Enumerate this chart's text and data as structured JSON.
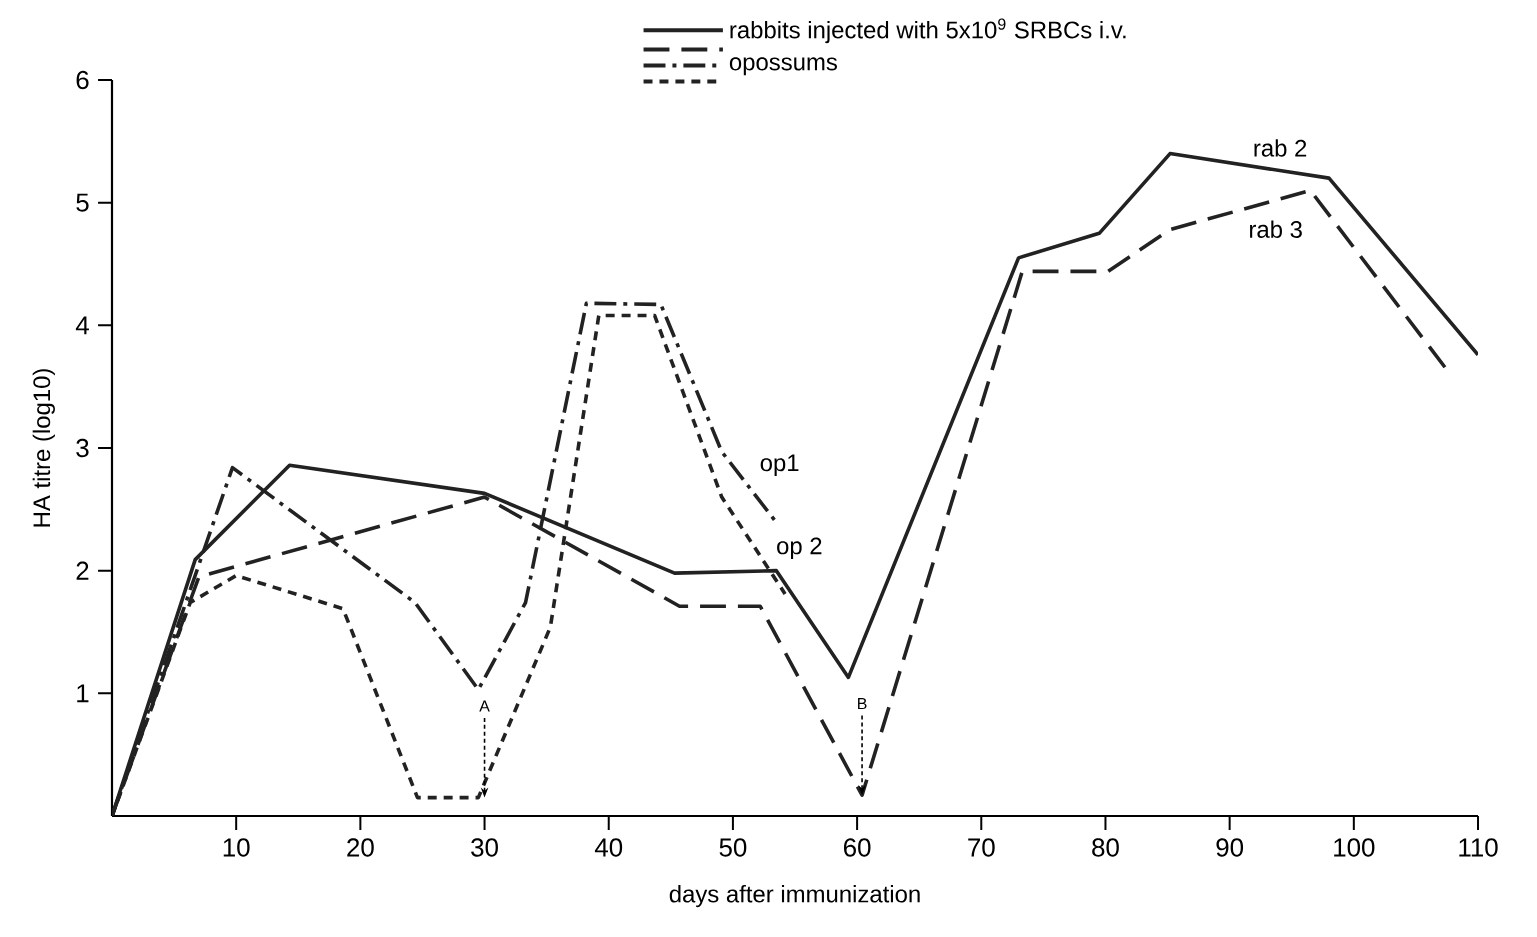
{
  "chart_data": {
    "type": "line",
    "xlabel": "days  after immunization",
    "ylabel": "HA  titre  (log10)",
    "xlim": [
      0,
      110
    ],
    "ylim": [
      0,
      6
    ],
    "xticks": [
      10,
      20,
      30,
      40,
      50,
      60,
      70,
      80,
      90,
      100,
      110
    ],
    "yticks": [
      1,
      2,
      3,
      4,
      5,
      6
    ],
    "grid": false,
    "legend": "top",
    "series": [
      {
        "name": "rabbits injected with  5x10$^{9}$ SRBCs i.v.",
        "color": "#222222",
        "line_style": "solid",
        "x": [
          0,
          6.7,
          14.3,
          30,
          45.3,
          53.5,
          59.3,
          73,
          79.5,
          85.2,
          98,
          110
        ],
        "values": [
          0,
          2.09,
          2.86,
          2.63,
          1.98,
          2.0,
          1.13,
          4.55,
          4.75,
          5.4,
          5.2,
          3.76
        ]
      },
      {
        "color": "#222222",
        "line_style": "dashed",
        "x": [
          0,
          7,
          30,
          45.7,
          52.2,
          60.4,
          73.3,
          80.2,
          85.2,
          96.5,
          107.4
        ],
        "values": [
          0,
          1.95,
          2.6,
          1.71,
          1.71,
          0.17,
          4.44,
          4.44,
          4.78,
          5.1,
          3.65
        ]
      },
      {
        "name": "opossums",
        "color": "#222222",
        "line_style": "dashdot",
        "x": [
          0,
          9.7,
          24.4,
          29.5,
          33.3,
          38.2,
          44.2,
          49.1,
          53.6
        ],
        "values": [
          0,
          2.84,
          1.74,
          1.03,
          1.74,
          4.18,
          4.17,
          2.97,
          2.38
        ]
      },
      {
        "color": "#222222",
        "line_style": "dotted",
        "x": [
          0,
          6.3,
          10,
          18.6,
          24.6,
          29.5,
          35.3,
          39.2,
          43.7,
          49.1,
          54.2
        ],
        "values": [
          0,
          1.74,
          1.96,
          1.69,
          0.15,
          0.15,
          1.54,
          4.08,
          4.08,
          2.6,
          1.81
        ]
      }
    ],
    "annotations": [
      {
        "text": "rab 2",
        "x": 92,
        "y": 5.29
      },
      {
        "text": "rab 3",
        "x": 91,
        "y": 4.94
      },
      {
        "text": "op1",
        "x": 51,
        "y": 2.72
      },
      {
        "text": "op 2",
        "x": 52,
        "y": 2.15
      },
      {
        "text": "A",
        "x": 30,
        "y": 0.15
      },
      {
        "text": "B",
        "x": 60.4,
        "y": 0.17
      }
    ]
  }
}
